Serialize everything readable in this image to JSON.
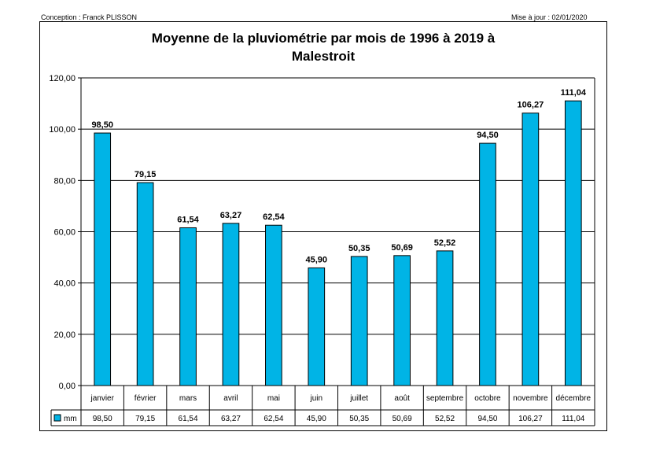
{
  "header": {
    "credit": "Conception : Franck PLISSON",
    "updated": "Mise à jour : 02/01/2020"
  },
  "chart_data": {
    "type": "bar",
    "title_line1": "Moyenne de la pluviométrie par mois de 1996 à 2019 à",
    "title_line2": "Malestroit",
    "categories": [
      "janvier",
      "février",
      "mars",
      "avril",
      "mai",
      "juin",
      "juillet",
      "août",
      "septembre",
      "octobre",
      "novembre",
      "décembre"
    ],
    "series": [
      {
        "name": "mm",
        "values": [
          98.5,
          79.15,
          61.54,
          63.27,
          62.54,
          45.9,
          50.35,
          50.69,
          52.52,
          94.5,
          106.27,
          111.04
        ],
        "color": "#00b4e6"
      }
    ],
    "data_labels": [
      "98,50",
      "79,15",
      "61,54",
      "63,27",
      "62,54",
      "45,90",
      "50,35",
      "50,69",
      "52,52",
      "94,50",
      "106,27",
      "111,04"
    ],
    "y_ticks": [
      "0,00",
      "20,00",
      "40,00",
      "60,00",
      "80,00",
      "100,00",
      "120,00"
    ],
    "ylim": [
      0,
      120
    ],
    "grid": true,
    "legend": "data-table"
  }
}
